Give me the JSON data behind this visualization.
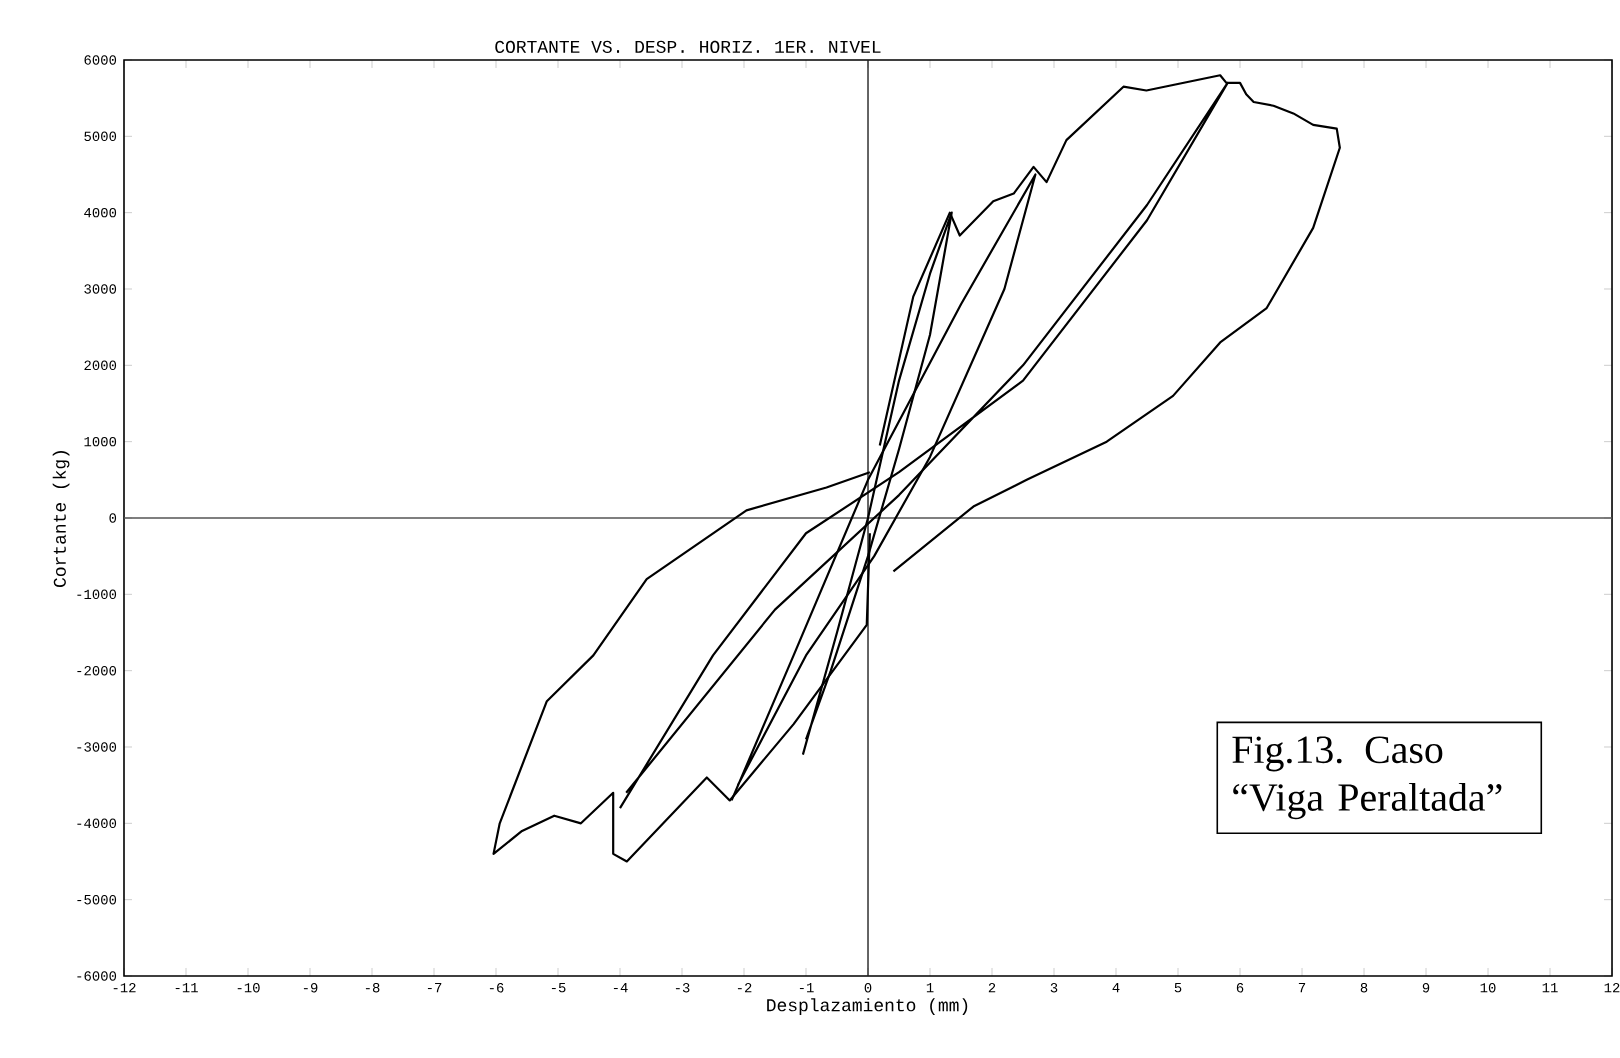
{
  "chart_data": {
    "type": "line",
    "title": "CORTANTE VS. DESP. HORIZ. 1ER. NIVEL",
    "xlabel": "Desplazamiento (mm)",
    "ylabel": "Cortante (kg)",
    "xlim": [
      -12,
      12
    ],
    "ylim": [
      -6000,
      6000
    ],
    "xticks": [
      -12,
      -11,
      -10,
      -9,
      -8,
      -7,
      -6,
      -5,
      -4,
      -3,
      -2,
      -1,
      0,
      1,
      2,
      3,
      4,
      5,
      6,
      7,
      8,
      9,
      10,
      11,
      12
    ],
    "yticks": [
      -6000,
      -5000,
      -4000,
      -3000,
      -2000,
      -1000,
      0,
      1000,
      2000,
      3000,
      4000,
      5000,
      6000
    ],
    "grid": false,
    "marker": "none",
    "line_style": "solid",
    "ref_lines": [
      {
        "axis": "x",
        "value": 0,
        "color": "#222222"
      },
      {
        "axis": "y",
        "value": 0,
        "color": "#555555"
      }
    ],
    "annotations": [
      "Fig.13. Caso “Viga Peraltada”"
    ],
    "series": [
      {
        "color": "#000000",
        "x": [
          0.19,
          0.73,
          1.32,
          1.48,
          2.02,
          2.35,
          2.67,
          2.88,
          3.2,
          4.12,
          4.49,
          5.68,
          5.78,
          6.0,
          6.1,
          6.22,
          6.54,
          6.86,
          7.18,
          7.56,
          7.61,
          7.18,
          6.43,
          5.68,
          4.92,
          3.85,
          2.56,
          1.7,
          0.41
        ],
        "values": [
          950,
          2900,
          4000,
          3700,
          4150,
          4250,
          4600,
          4400,
          4950,
          5650,
          5600,
          5800,
          5700,
          5700,
          5550,
          5450,
          5400,
          5300,
          5150,
          5100,
          4850,
          3800,
          2750,
          2300,
          1600,
          1000,
          500,
          150,
          -700
        ]
      },
      {
        "color": "#000000",
        "x": [
          0.03,
          -0.02,
          -1.2,
          -2.23,
          -2.6,
          -3.89,
          -4.11,
          -4.11,
          -4.63,
          -5.06,
          -5.58,
          -6.04,
          -5.94,
          -5.18,
          -4.43,
          -3.57,
          -1.96,
          -0.67,
          0.03
        ],
        "values": [
          -200,
          -1400,
          -2700,
          -3700,
          -3400,
          -4500,
          -4400,
          -3600,
          -4000,
          -3900,
          -4100,
          -4400,
          -4000,
          -2400,
          -1800,
          -800,
          100,
          400,
          600
        ]
      },
      {
        "color": "#000000",
        "x": [
          -1.05,
          -0.5,
          0,
          0.5,
          1.0,
          1.35,
          1.0,
          0.5,
          0,
          -0.6,
          -1.0
        ],
        "values": [
          -3100,
          -1500,
          0,
          1800,
          3200,
          4000,
          2400,
          900,
          -500,
          -2000,
          -2900
        ]
      },
      {
        "color": "#000000",
        "x": [
          -2.2,
          -1.2,
          0,
          1.5,
          2.7,
          2.2,
          1.0,
          0.1,
          -1.0,
          -2.1
        ],
        "values": [
          -3700,
          -1800,
          500,
          2800,
          4500,
          3000,
          800,
          -500,
          -1800,
          -3500
        ]
      },
      {
        "color": "#000000",
        "x": [
          -4.0,
          -2.5,
          -1.0,
          0.5,
          2.5,
          4.5,
          5.8,
          4.5,
          2.5,
          0.5,
          -1.5,
          -3.9
        ],
        "values": [
          -3800,
          -1800,
          -200,
          600,
          1800,
          3900,
          5700,
          4100,
          2000,
          300,
          -1200,
          -3600
        ]
      }
    ]
  }
}
